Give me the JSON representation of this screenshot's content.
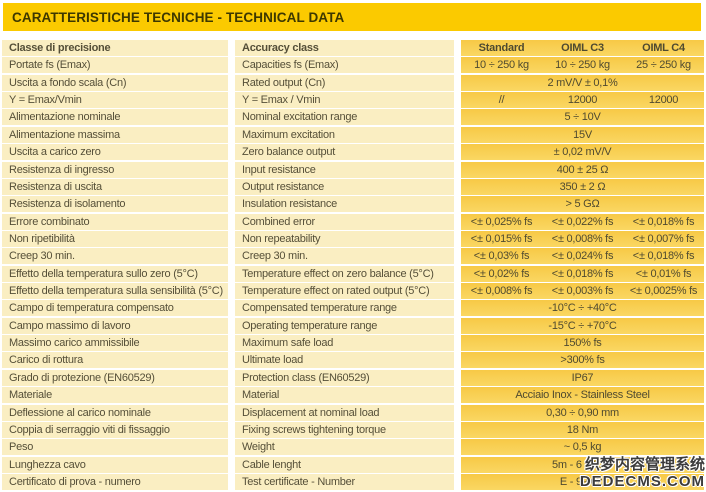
{
  "title": "CARATTERISTICHE TECNICHE - TECHNICAL DATA",
  "colors": {
    "title_bar": "#fbca00",
    "label_cell": "#faeec2",
    "value_cell": "#f8d055",
    "text": "#554f38"
  },
  "table": {
    "header": {
      "it": "Classe di precisione",
      "en": "Accuracy class",
      "cols": [
        "Standard",
        "OIML C3",
        "OIML C4"
      ]
    },
    "rows": [
      {
        "it": "Portate fs (Emax)",
        "en": "Capacities fs (Emax)",
        "values": [
          "10 ÷ 250 kg",
          "10 ÷ 250 kg",
          "25 ÷ 250 kg"
        ]
      },
      {
        "it": "Uscita a fondo scala (Cn)",
        "en": "Rated output (Cn)",
        "span": "2 mV/V ± 0,1%"
      },
      {
        "it": "Y = Emax/Vmin",
        "en": "Y = Emax / Vmin",
        "values": [
          "//",
          "12000",
          "12000"
        ]
      },
      {
        "it": "Alimentazione nominale",
        "en": "Nominal excitation range",
        "span": "5 ÷ 10V"
      },
      {
        "it": "Alimentazione massima",
        "en": "Maximum excitation",
        "span": "15V"
      },
      {
        "it": "Uscita a carico zero",
        "en": "Zero balance output",
        "span": "± 0,02 mV/V"
      },
      {
        "it": "Resistenza di ingresso",
        "en": "Input resistance",
        "span": "400 ± 25 Ω"
      },
      {
        "it": "Resistenza di uscita",
        "en": "Output resistance",
        "span": "350 ± 2 Ω"
      },
      {
        "it": "Resistenza di isolamento",
        "en": "Insulation resistance",
        "span": "> 5 GΩ"
      },
      {
        "it": "Errore combinato",
        "en": "Combined error",
        "values": [
          "<± 0,025% fs",
          "<± 0,022% fs",
          "<± 0,018% fs"
        ]
      },
      {
        "it": "Non ripetibilità",
        "en": "Non repeatability",
        "values": [
          "<± 0,015% fs",
          "<± 0,008% fs",
          "<± 0,007% fs"
        ]
      },
      {
        "it": "Creep 30 min.",
        "en": "Creep 30 min.",
        "values": [
          "<± 0,03% fs",
          "<± 0,024% fs",
          "<± 0,018% fs"
        ]
      },
      {
        "it": "Effetto della temperatura sullo zero (5°C)",
        "en": "Temperature effect on zero balance (5°C)",
        "values": [
          "<± 0,02% fs",
          "<± 0,018% fs",
          "<± 0,01% fs"
        ]
      },
      {
        "it": "Effetto della temperatura sulla sensibilità (5°C)",
        "en": "Temperature effect on rated output (5°C)",
        "values": [
          "<± 0,008% fs",
          "<± 0,003% fs",
          "<± 0,0025% fs"
        ]
      },
      {
        "it": "Campo di temperatura compensato",
        "en": "Compensated temperature range",
        "span": "-10°C ÷ +40°C"
      },
      {
        "it": "Campo massimo di lavoro",
        "en": "Operating temperature range",
        "span": "-15°C ÷ +70°C"
      },
      {
        "it": "Massimo carico ammissibile",
        "en": "Maximum safe load",
        "span": "150% fs"
      },
      {
        "it": "Carico di rottura",
        "en": "Ultimate load",
        "span": ">300% fs"
      },
      {
        "it": "Grado di protezione (EN60529)",
        "en": "Protection class (EN60529)",
        "span": "IP67"
      },
      {
        "it": "Materiale",
        "en": "Material",
        "span": "Acciaio Inox - Stainless Steel"
      },
      {
        "it": "Deflessione al carico nominale",
        "en": "Displacement at nominal load",
        "span": "0,30 ÷ 0,90 mm"
      },
      {
        "it": "Coppia di serraggio viti di fissaggio",
        "en": "Fixing screws tightening torque",
        "span": "18 Nm"
      },
      {
        "it": "Peso",
        "en": "Weight",
        "span": "~ 0,5 kg"
      },
      {
        "it": "Lunghezza cavo",
        "en": "Cable lenght",
        "span": "5m - 6 x 0,14"
      },
      {
        "it": "Certificato di prova - numero",
        "en": "Test certificate - Number",
        "span": "E - 99.02."
      }
    ]
  },
  "watermark": {
    "line1": "织梦内容管理系统",
    "line2": "DEDECMS.COM"
  }
}
